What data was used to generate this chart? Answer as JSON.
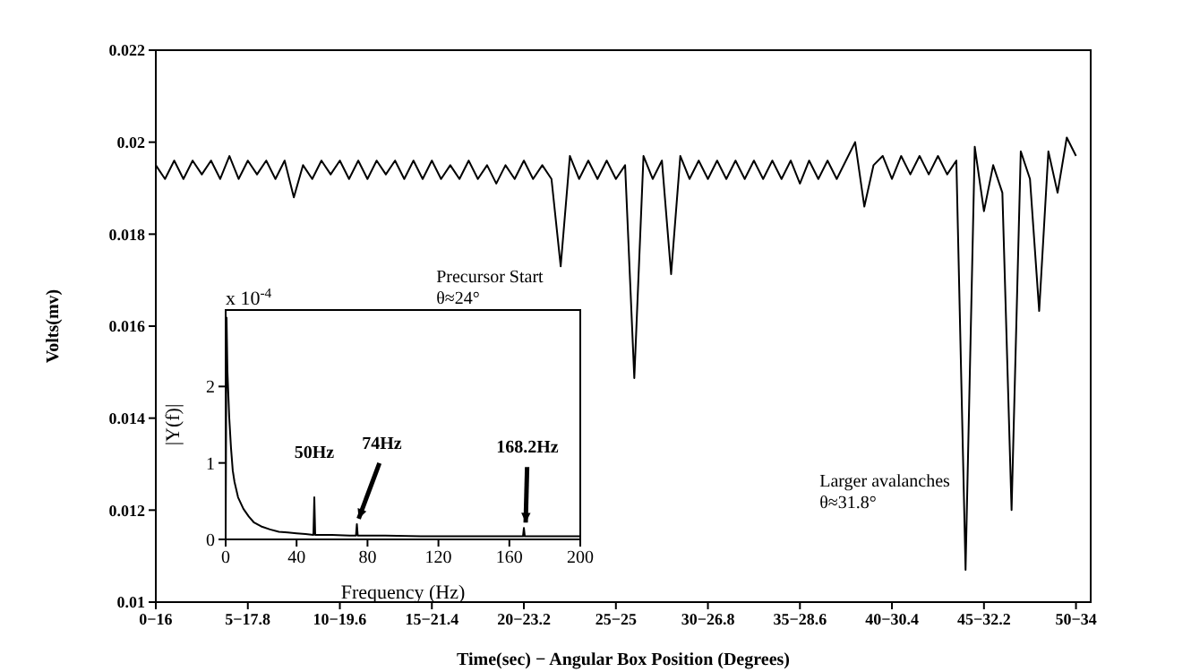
{
  "chart_data": [
    {
      "type": "line",
      "xlabel": "Time(sec) − Angular Box Position (Degrees)",
      "ylabel": "Volts(mv)",
      "categories": [
        "0−16",
        null,
        null,
        null,
        null,
        null,
        null,
        null,
        null,
        null,
        "5−17.8",
        null,
        null,
        null,
        null,
        null,
        null,
        null,
        null,
        null,
        "10−19.6",
        null,
        null,
        null,
        null,
        null,
        null,
        null,
        null,
        null,
        "15−21.4",
        null,
        null,
        null,
        null,
        null,
        null,
        null,
        null,
        null,
        "20−23.2",
        null,
        null,
        null,
        null,
        null,
        null,
        null,
        null,
        null,
        "25−25",
        null,
        null,
        null,
        null,
        null,
        null,
        null,
        null,
        null,
        "30−26.8",
        null,
        null,
        null,
        null,
        null,
        null,
        null,
        null,
        null,
        "35−28.6",
        null,
        null,
        null,
        null,
        null,
        null,
        null,
        null,
        null,
        "40−30.4",
        null,
        null,
        null,
        null,
        null,
        null,
        null,
        null,
        null,
        "45−32.2",
        null,
        null,
        null,
        null,
        null,
        null,
        null,
        null,
        null,
        "50−34"
      ],
      "ylim": [
        0.01,
        0.022
      ],
      "yticks": [
        0.01,
        0.012,
        0.014,
        0.016,
        0.018,
        0.02,
        0.022
      ],
      "grid": false,
      "legend": false,
      "marker": "none",
      "line_style": "solid",
      "annotations": [
        "Precursor Start\nθ≈24°",
        "Larger avalanches\nθ≈31.8°"
      ],
      "series": [
        {
          "color": "#000000",
          "values": [
            0.0195,
            0.0192,
            0.0196,
            0.0192,
            0.0196,
            0.0193,
            0.0196,
            0.0192,
            0.0197,
            0.0192,
            0.0196,
            0.0193,
            0.0196,
            0.0192,
            0.0196,
            0.0188,
            0.0195,
            0.0192,
            0.0196,
            0.0193,
            0.0196,
            0.0192,
            0.0196,
            0.0192,
            0.0196,
            0.0193,
            0.0196,
            0.0192,
            0.0196,
            0.0192,
            0.0196,
            0.0192,
            0.0195,
            0.0192,
            0.0196,
            0.0192,
            0.0195,
            0.0191,
            0.0195,
            0.0192,
            0.0196,
            0.0192,
            0.0195,
            0.0192,
            0.0173,
            0.0197,
            0.0192,
            0.0196,
            0.0192,
            0.0196,
            0.0192,
            0.0195,
            0.01487,
            0.0197,
            0.0192,
            0.0196,
            0.01713,
            0.0197,
            0.0192,
            0.0196,
            0.0192,
            0.0196,
            0.0192,
            0.0196,
            0.0192,
            0.0196,
            0.0192,
            0.0196,
            0.0192,
            0.0196,
            0.0191,
            0.0196,
            0.0192,
            0.0196,
            0.0192,
            0.0196,
            0.02,
            0.0186,
            0.0195,
            0.0197,
            0.0192,
            0.0197,
            0.0193,
            0.0197,
            0.0193,
            0.0197,
            0.0193,
            0.0196,
            0.0107,
            0.0199,
            0.0185,
            0.0195,
            0.0189,
            0.012,
            0.0198,
            0.0192,
            0.01633,
            0.0198,
            0.0189,
            0.0201,
            0.0197
          ]
        }
      ]
    },
    {
      "type": "line",
      "xlabel": "Frequency (Hz)",
      "ylabel": "|Y(f)|",
      "xlim": [
        0,
        200
      ],
      "ylim": [
        0,
        3
      ],
      "xticks": [
        0,
        40,
        80,
        120,
        160,
        200
      ],
      "yticks": [
        0,
        1,
        2
      ],
      "grid": false,
      "legend": false,
      "marker": "none",
      "line_style": "solid",
      "annotations": [
        "x 10$^{-4}$",
        {
          "text": "50Hz",
          "x": 50,
          "y": 0.55
        },
        {
          "text": "74Hz",
          "x": 74,
          "y": 0.2
        },
        {
          "text": "168.2Hz",
          "x": 168.2,
          "y": 0.15
        }
      ],
      "series": [
        {
          "color": "#000000",
          "x": [
            0,
            0.5,
            1,
            2,
            3,
            4,
            5,
            7,
            10,
            13,
            16,
            20,
            25,
            30,
            35,
            40,
            45,
            49.5,
            50,
            50.5,
            60,
            70,
            73.5,
            74,
            74.5,
            90,
            110,
            130,
            150,
            167.7,
            168.2,
            168.7,
            185,
            200
          ],
          "values": [
            0.1,
            2.9,
            2.2,
            1.6,
            1.2,
            0.9,
            0.75,
            0.55,
            0.4,
            0.3,
            0.22,
            0.17,
            0.13,
            0.1,
            0.09,
            0.08,
            0.07,
            0.06,
            0.55,
            0.06,
            0.06,
            0.05,
            0.05,
            0.2,
            0.05,
            0.05,
            0.04,
            0.04,
            0.04,
            0.04,
            0.15,
            0.04,
            0.04,
            0.04
          ]
        }
      ]
    }
  ]
}
